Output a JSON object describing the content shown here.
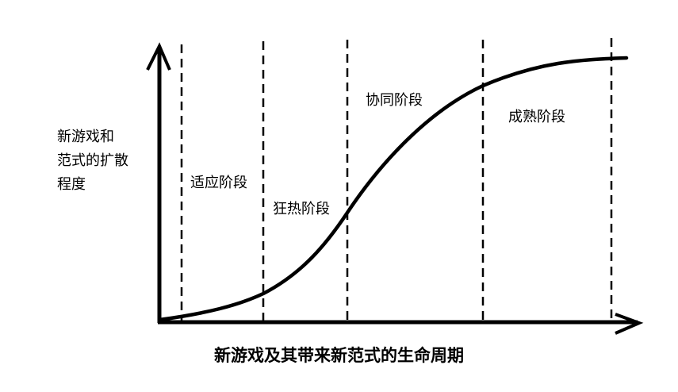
{
  "y_axis_label": [
    "新游戏和",
    "范式的扩散",
    "程度"
  ],
  "stages": [
    "适应阶段",
    "狂热阶段",
    "协同阶段",
    "成熟阶段"
  ],
  "caption": "新游戏及其带来新范式的生命周期",
  "colors": {
    "line": "#000000",
    "background": "#ffffff"
  },
  "icons": {
    "axis_arrows": "arrow-head-icon"
  }
}
